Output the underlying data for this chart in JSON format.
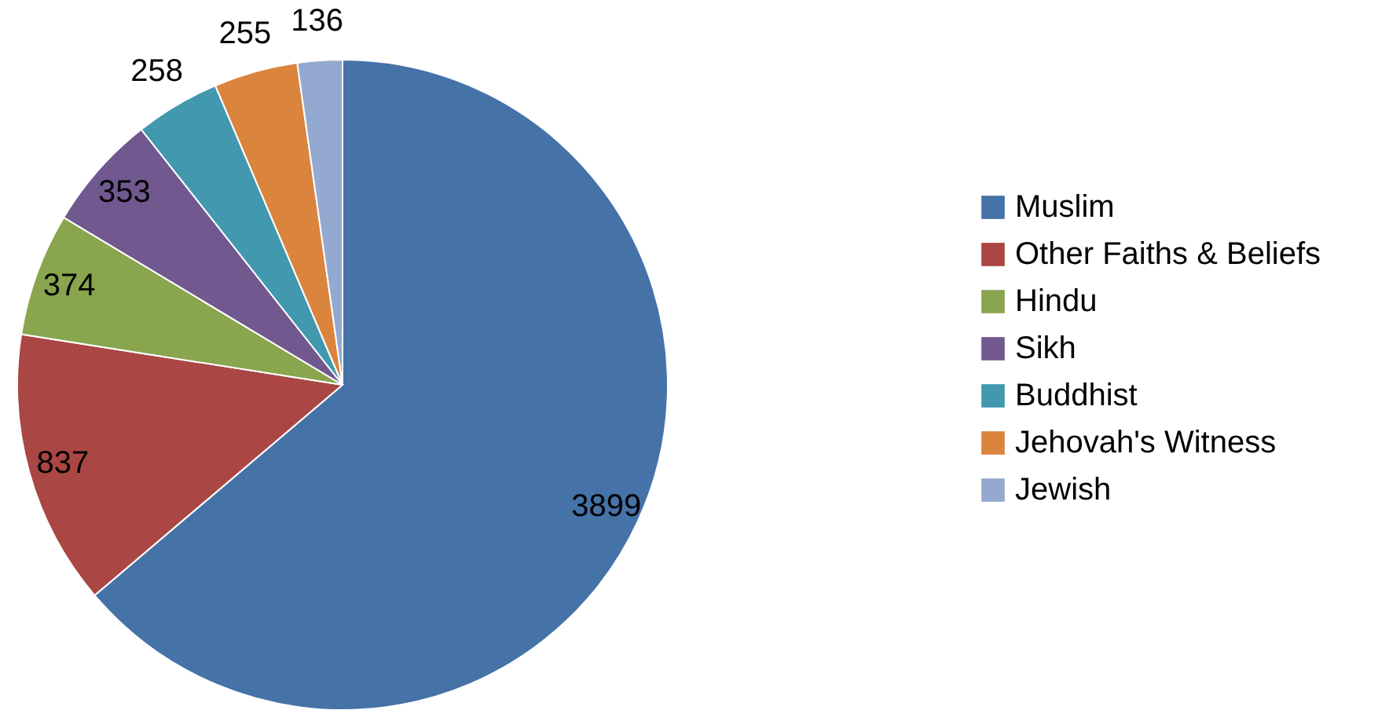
{
  "chart_data": {
    "type": "pie",
    "categories": [
      "Muslim",
      "Other Faiths & Beliefs",
      "Hindu",
      "Sikh",
      "Buddhist",
      "Jehovah's Witness",
      "Jewish"
    ],
    "values": [
      3899,
      837,
      374,
      353,
      258,
      255,
      136
    ],
    "colors": [
      "#4572a7",
      "#aa4643",
      "#89a54e",
      "#71588f",
      "#4198af",
      "#db843d",
      "#93a9cf"
    ],
    "data_labels": true,
    "legend": "right"
  }
}
